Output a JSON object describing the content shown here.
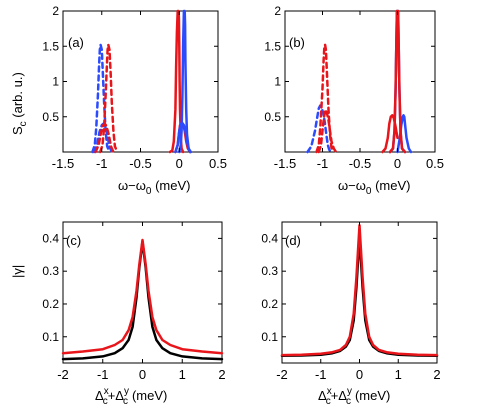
{
  "chart_data": [
    {
      "panel": "(a)",
      "type": "line",
      "xlim": [
        -1.5,
        0.5
      ],
      "ylim": [
        0,
        2
      ],
      "xticks": [
        "-1.5",
        "-1",
        "-0.5",
        "0",
        "0.5"
      ],
      "yticks": [
        "0.5",
        "1",
        "1.5",
        "2"
      ],
      "xlabel": "ω−ω",
      "xlabel_sub": "0",
      "xlabel_unit": " (meV)",
      "ylabel": "S",
      "ylabel_sub": "c",
      "ylabel_unit": " (arb. u.)",
      "series": [
        {
          "color": "#e8151b",
          "style": "solid",
          "x": [
            -0.12,
            -0.09,
            -0.07,
            -0.05,
            -0.04,
            -0.03,
            -0.02,
            -0.015,
            -0.01,
            -0.005,
            0.0,
            0.005,
            0.01,
            0.02,
            0.03,
            0.05
          ],
          "y": [
            0,
            0.02,
            0.15,
            0.6,
            1.2,
            1.7,
            2,
            2,
            2,
            1.9,
            1.5,
            1.0,
            0.6,
            0.2,
            0.05,
            0
          ]
        },
        {
          "color": "#e8151b",
          "style": "solid",
          "x": [
            -0.05,
            -0.02,
            0.0,
            0.01,
            0.03,
            0.05,
            0.07,
            0.09,
            0.11,
            0.14
          ],
          "y": [
            0,
            0.1,
            0.3,
            0.38,
            0.4,
            0.38,
            0.3,
            0.15,
            0.05,
            0
          ]
        },
        {
          "color": "#2b4bff",
          "style": "solid",
          "x": [
            0.0,
            0.02,
            0.03,
            0.04,
            0.05,
            0.06,
            0.065,
            0.07,
            0.075,
            0.08,
            0.09,
            0.1,
            0.12,
            0.15
          ],
          "y": [
            0,
            0.1,
            0.3,
            0.8,
            1.5,
            2,
            2,
            2,
            1.8,
            1.3,
            0.6,
            0.25,
            0.05,
            0
          ]
        },
        {
          "color": "#2b4bff",
          "style": "solid",
          "x": [
            -0.05,
            -0.02,
            0.0,
            0.02,
            0.04,
            0.06,
            0.08,
            0.1,
            0.12,
            0.14
          ],
          "y": [
            0,
            0.1,
            0.3,
            0.4,
            0.41,
            0.38,
            0.3,
            0.15,
            0.05,
            0
          ]
        },
        {
          "color": "#2b4bff",
          "style": "dashed",
          "x": [
            -1.12,
            -1.09,
            -1.07,
            -1.05,
            -1.035,
            -1.025,
            -1.015,
            -1.0,
            -0.985,
            -0.97,
            -0.95,
            -0.93,
            -0.9
          ],
          "y": [
            0,
            0.1,
            0.35,
            0.8,
            1.2,
            1.45,
            1.52,
            1.45,
            1.1,
            0.7,
            0.3,
            0.08,
            0
          ]
        },
        {
          "color": "#2b4bff",
          "style": "dashed",
          "x": [
            -1.1,
            -1.06,
            -1.03,
            -1.0,
            -0.98,
            -0.96,
            -0.93,
            -0.9,
            -0.87
          ],
          "y": [
            0,
            0.1,
            0.28,
            0.38,
            0.4,
            0.37,
            0.25,
            0.08,
            0
          ]
        },
        {
          "color": "#e8151b",
          "style": "dashed",
          "x": [
            -1.02,
            -0.99,
            -0.97,
            -0.95,
            -0.935,
            -0.925,
            -0.915,
            -0.9,
            -0.885,
            -0.87,
            -0.85,
            -0.83,
            -0.8
          ],
          "y": [
            0,
            0.1,
            0.35,
            0.8,
            1.2,
            1.45,
            1.52,
            1.45,
            1.1,
            0.7,
            0.3,
            0.08,
            0
          ]
        },
        {
          "color": "#e8151b",
          "style": "dashed",
          "x": [
            -1.08,
            -1.04,
            -1.01,
            -0.98,
            -0.96,
            -0.94,
            -0.91,
            -0.88,
            -0.85
          ],
          "y": [
            0,
            0.1,
            0.28,
            0.38,
            0.4,
            0.37,
            0.25,
            0.08,
            0
          ]
        }
      ]
    },
    {
      "panel": "(b)",
      "type": "line",
      "xlim": [
        -1.5,
        0.5
      ],
      "ylim": [
        0,
        2
      ],
      "xticks": [
        "-1.5",
        "-1",
        "-0.5",
        "0",
        "0.5"
      ],
      "yticks": [
        "0.5",
        "1",
        "1.5",
        "2"
      ],
      "xlabel": "ω−ω",
      "xlabel_sub": "0",
      "xlabel_unit": " (meV)",
      "series": [
        {
          "color": "#2b4bff",
          "style": "solid",
          "x": [
            -0.1,
            -0.06,
            -0.04,
            -0.025,
            -0.015,
            -0.008,
            0.0,
            0.008,
            0.015,
            0.025,
            0.04,
            0.06,
            0.1
          ],
          "y": [
            0,
            0.05,
            0.3,
            0.9,
            1.6,
            2,
            2,
            2,
            1.6,
            0.9,
            0.3,
            0.05,
            0
          ]
        },
        {
          "color": "#2b4bff",
          "style": "solid",
          "x": [
            0.0,
            0.03,
            0.05,
            0.07,
            0.08,
            0.09,
            0.1,
            0.12,
            0.15,
            0.18
          ],
          "y": [
            0,
            0.2,
            0.38,
            0.5,
            0.52,
            0.5,
            0.4,
            0.2,
            0.05,
            0
          ]
        },
        {
          "color": "#e8151b",
          "style": "solid",
          "x": [
            -0.1,
            -0.06,
            -0.04,
            -0.025,
            -0.015,
            -0.008,
            0.0,
            0.008,
            0.015,
            0.025,
            0.04,
            0.06,
            0.1
          ],
          "y": [
            0,
            0.05,
            0.3,
            0.9,
            1.6,
            2,
            2,
            2,
            1.6,
            0.9,
            0.3,
            0.05,
            0
          ]
        },
        {
          "color": "#e8151b",
          "style": "solid",
          "x": [
            -0.2,
            -0.16,
            -0.13,
            -0.11,
            -0.09,
            -0.07,
            -0.05,
            -0.03,
            0.0
          ],
          "y": [
            0,
            0.05,
            0.2,
            0.4,
            0.5,
            0.52,
            0.48,
            0.38,
            0.2
          ]
        },
        {
          "color": "#2b4bff",
          "style": "dashed",
          "x": [
            -1.2,
            -1.15,
            -1.1,
            -1.07,
            -1.05,
            -1.03,
            -1.01,
            -0.99,
            -0.97,
            -0.95,
            -0.93,
            -0.91,
            -0.88
          ],
          "y": [
            0,
            0.08,
            0.3,
            0.5,
            0.62,
            0.66,
            0.62,
            0.55,
            0.42,
            0.25,
            0.1,
            0.03,
            0
          ]
        },
        {
          "color": "#e8151b",
          "style": "dashed",
          "x": [
            -1.08,
            -1.05,
            -1.03,
            -1.0,
            -0.985,
            -0.975,
            -0.965,
            -0.955,
            -0.94,
            -0.92,
            -0.9,
            -0.88,
            -0.85
          ],
          "y": [
            0,
            0.1,
            0.35,
            0.9,
            1.3,
            1.5,
            1.52,
            1.45,
            1.1,
            0.6,
            0.25,
            0.06,
            0
          ]
        },
        {
          "color": "#e8151b",
          "style": "dashed",
          "x": [
            -1.05,
            -1.02,
            -1.0,
            -0.98,
            -0.96,
            -0.94,
            -0.92,
            -0.9,
            -0.88,
            -0.85,
            -0.82
          ],
          "y": [
            0,
            0.1,
            0.3,
            0.5,
            0.6,
            0.55,
            0.45,
            0.3,
            0.15,
            0.05,
            0
          ]
        }
      ]
    },
    {
      "panel": "(c)",
      "type": "line",
      "xlim": [
        -2,
        2
      ],
      "ylim": [
        0.02,
        0.45
      ],
      "xticks": [
        "-2",
        "-1",
        "0",
        "1",
        "2"
      ],
      "yticks": [
        "0.1",
        "0.2",
        "0.3",
        "0.4"
      ],
      "ylabel": "|γ|",
      "xlabel": "Δ",
      "xlabel_parts": [
        "x",
        "c",
        "+Δ",
        "y",
        "c"
      ],
      "xlabel_unit": "(meV)",
      "series": [
        {
          "color": "#000000",
          "style": "solid",
          "x": [
            -2,
            -1.5,
            -1,
            -0.7,
            -0.5,
            -0.35,
            -0.25,
            -0.15,
            -0.08,
            0,
            0.08,
            0.15,
            0.25,
            0.35,
            0.5,
            0.7,
            1,
            1.5,
            2
          ],
          "y": [
            0.032,
            0.034,
            0.04,
            0.05,
            0.065,
            0.09,
            0.13,
            0.22,
            0.31,
            0.39,
            0.31,
            0.22,
            0.13,
            0.09,
            0.065,
            0.05,
            0.04,
            0.034,
            0.032
          ]
        },
        {
          "color": "#e8151b",
          "style": "solid",
          "x": [
            -2,
            -1.5,
            -1,
            -0.7,
            -0.5,
            -0.35,
            -0.25,
            -0.15,
            -0.08,
            0,
            0.08,
            0.15,
            0.25,
            0.35,
            0.5,
            0.7,
            1,
            1.5,
            2
          ],
          "y": [
            0.05,
            0.055,
            0.062,
            0.075,
            0.09,
            0.12,
            0.16,
            0.24,
            0.32,
            0.395,
            0.32,
            0.24,
            0.16,
            0.12,
            0.09,
            0.075,
            0.062,
            0.055,
            0.05
          ]
        }
      ]
    },
    {
      "panel": "(d)",
      "type": "line",
      "xlim": [
        -2,
        2
      ],
      "ylim": [
        0.02,
        0.45
      ],
      "xticks": [
        "-2",
        "-1",
        "0",
        "1",
        "2"
      ],
      "yticks": [
        "0.1",
        "0.2",
        "0.3",
        "0.4"
      ],
      "xlabel": "Δ",
      "xlabel_parts": [
        "x",
        "c",
        "+Δ",
        "y",
        "c"
      ],
      "xlabel_unit": "(meV)",
      "series": [
        {
          "color": "#000000",
          "style": "solid",
          "x": [
            -2,
            -1.5,
            -1,
            -0.7,
            -0.5,
            -0.35,
            -0.25,
            -0.15,
            -0.08,
            0,
            0.08,
            0.15,
            0.25,
            0.35,
            0.5,
            0.7,
            1,
            1.5,
            2
          ],
          "y": [
            0.042,
            0.043,
            0.045,
            0.05,
            0.057,
            0.07,
            0.09,
            0.15,
            0.25,
            0.405,
            0.25,
            0.15,
            0.09,
            0.07,
            0.057,
            0.05,
            0.045,
            0.043,
            0.042
          ]
        },
        {
          "color": "#e8151b",
          "style": "solid",
          "x": [
            -2,
            -1.5,
            -1,
            -0.7,
            -0.5,
            -0.35,
            -0.25,
            -0.15,
            -0.08,
            0,
            0.08,
            0.15,
            0.25,
            0.35,
            0.5,
            0.7,
            1,
            1.5,
            2
          ],
          "y": [
            0.044,
            0.045,
            0.048,
            0.053,
            0.06,
            0.075,
            0.1,
            0.17,
            0.28,
            0.44,
            0.28,
            0.17,
            0.1,
            0.075,
            0.06,
            0.053,
            0.048,
            0.045,
            0.044
          ]
        }
      ]
    }
  ]
}
